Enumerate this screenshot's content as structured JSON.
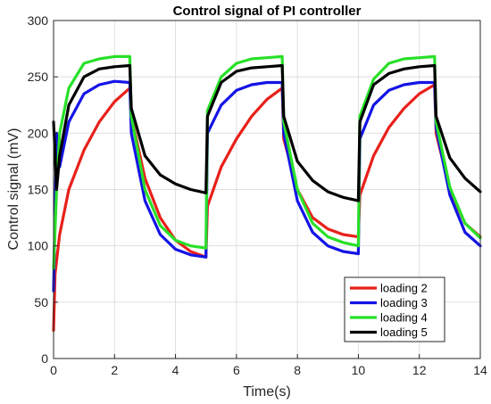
{
  "chart_data": {
    "type": "line",
    "title": "Control signal of PI controller",
    "xlabel": "Time(s)",
    "ylabel": "Control signal (mV)",
    "xlim": [
      0,
      14
    ],
    "ylim": [
      0,
      300
    ],
    "xticks": [
      0,
      2,
      4,
      6,
      8,
      10,
      12,
      14
    ],
    "yticks": [
      0,
      50,
      100,
      150,
      200,
      250,
      300
    ],
    "grid": true,
    "legend_position": "bottom-right",
    "series": [
      {
        "name": "loading 2",
        "color": "#e8201a",
        "x": [
          0,
          0.05,
          0.2,
          0.5,
          1.0,
          1.5,
          2.0,
          2.5,
          2.55,
          3.0,
          3.5,
          4.0,
          4.5,
          5.0,
          5.05,
          5.5,
          6.0,
          6.5,
          7.0,
          7.5,
          7.55,
          8.0,
          8.5,
          9.0,
          9.5,
          10.0,
          10.05,
          10.5,
          11.0,
          11.5,
          12.0,
          12.5,
          12.55,
          13.0,
          13.5,
          14.0
        ],
        "y": [
          25,
          75,
          110,
          150,
          185,
          210,
          228,
          240,
          215,
          160,
          125,
          105,
          95,
          90,
          135,
          170,
          195,
          215,
          230,
          240,
          195,
          150,
          125,
          115,
          110,
          108,
          145,
          180,
          205,
          222,
          235,
          243,
          200,
          150,
          120,
          108
        ]
      },
      {
        "name": "loading 3",
        "color": "#1414e6",
        "x": [
          0,
          0.1,
          0.2,
          0.5,
          1.0,
          1.5,
          2.0,
          2.5,
          2.55,
          3.0,
          3.5,
          4.0,
          4.5,
          5.0,
          5.05,
          5.5,
          6.0,
          6.5,
          7.0,
          7.5,
          7.55,
          8.0,
          8.5,
          9.0,
          9.5,
          10.0,
          10.05,
          10.5,
          11.0,
          11.5,
          12.0,
          12.5,
          12.55,
          13.0,
          13.5,
          14.0
        ],
        "y": [
          60,
          200,
          170,
          210,
          235,
          243,
          246,
          245,
          200,
          140,
          110,
          97,
          92,
          90,
          200,
          225,
          238,
          243,
          245,
          245,
          200,
          140,
          112,
          100,
          95,
          93,
          195,
          225,
          238,
          243,
          245,
          245,
          205,
          145,
          112,
          100
        ]
      },
      {
        "name": "loading 4",
        "color": "#28e028",
        "x": [
          0,
          0.1,
          0.2,
          0.5,
          1.0,
          1.5,
          2.0,
          2.5,
          2.55,
          3.0,
          3.5,
          4.0,
          4.5,
          5.0,
          5.05,
          5.5,
          6.0,
          6.5,
          7.0,
          7.5,
          7.55,
          8.0,
          8.5,
          9.0,
          9.5,
          10.0,
          10.05,
          10.5,
          11.0,
          11.5,
          12.0,
          12.5,
          12.55,
          13.0,
          13.5,
          14.0
        ],
        "y": [
          80,
          150,
          200,
          240,
          262,
          266,
          268,
          268,
          215,
          150,
          118,
          105,
          100,
          98,
          220,
          250,
          262,
          266,
          267,
          268,
          210,
          150,
          120,
          108,
          103,
          100,
          215,
          248,
          262,
          266,
          267,
          268,
          210,
          152,
          120,
          107
        ]
      },
      {
        "name": "loading 5",
        "color": "#000000",
        "x": [
          0,
          0.1,
          0.2,
          0.5,
          1.0,
          1.5,
          2.0,
          2.5,
          2.55,
          3.0,
          3.5,
          4.0,
          4.5,
          5.0,
          5.05,
          5.5,
          6.0,
          6.5,
          7.0,
          7.5,
          7.55,
          8.0,
          8.5,
          9.0,
          9.5,
          10.0,
          10.05,
          10.5,
          11.0,
          11.5,
          12.0,
          12.5,
          12.55,
          13.0,
          13.5,
          14.0
        ],
        "y": [
          210,
          150,
          180,
          225,
          250,
          257,
          259,
          260,
          222,
          180,
          163,
          155,
          150,
          147,
          215,
          245,
          255,
          258,
          259,
          260,
          215,
          175,
          158,
          148,
          143,
          140,
          210,
          243,
          253,
          257,
          259,
          260,
          215,
          178,
          160,
          148
        ]
      }
    ]
  }
}
